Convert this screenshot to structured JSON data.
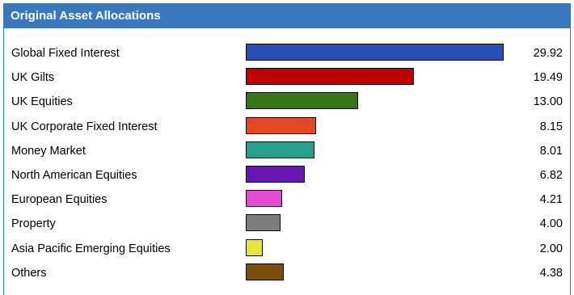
{
  "header": {
    "title": "Original Asset Allocations"
  },
  "chart_data": {
    "type": "bar",
    "orientation": "horizontal",
    "title": "Original Asset Allocations",
    "categories": [
      "Global Fixed Interest",
      "UK Gilts",
      "UK Equities",
      "UK Corporate Fixed Interest",
      "Money Market",
      "North American Equities",
      "European Equities",
      "Property",
      "Asia Pacific Emerging Equities",
      "Others"
    ],
    "values": [
      29.92,
      19.49,
      13.0,
      8.15,
      8.01,
      6.82,
      4.21,
      4.0,
      2.0,
      4.38
    ],
    "value_labels": [
      "29.92",
      "19.49",
      "13.00",
      "8.15",
      "8.01",
      "6.82",
      "4.21",
      "4.00",
      "2.00",
      "4.38"
    ],
    "colors": [
      "#2b4fb5",
      "#c00000",
      "#3a7419",
      "#e24a26",
      "#26a08e",
      "#6a15b0",
      "#e04cd6",
      "#7d7d7d",
      "#e5e53c",
      "#7a4d0a"
    ],
    "xlim": [
      0,
      30
    ],
    "grid": false,
    "legend": "none"
  }
}
